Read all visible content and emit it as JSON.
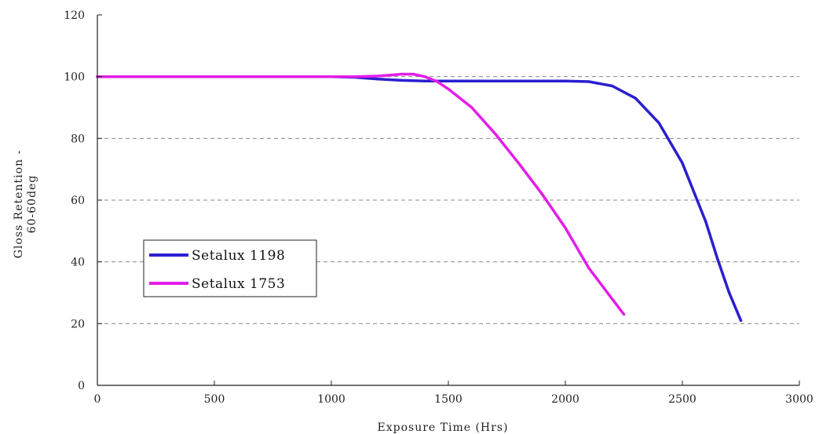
{
  "chart_data": {
    "type": "line",
    "title": "",
    "xlabel": "Exposure Time (Hrs)",
    "ylabel_line1": "Gloss Retention -",
    "ylabel_line2": "60-60deg",
    "xlim": [
      0,
      3000
    ],
    "ylim": [
      0,
      120
    ],
    "x_ticks": [
      0,
      500,
      1000,
      1500,
      2000,
      2500,
      3000
    ],
    "y_ticks": [
      0,
      20,
      40,
      60,
      80,
      100,
      120
    ],
    "grid": "horizontal dashed",
    "legend_position": "lower-left",
    "series": [
      {
        "name": "Setalux 1198",
        "color": "#2a1fd0",
        "x": [
          0,
          200,
          400,
          600,
          800,
          1000,
          1100,
          1200,
          1300,
          1400,
          1600,
          1800,
          2000,
          2100,
          2200,
          2300,
          2400,
          2500,
          2600,
          2650,
          2700,
          2750
        ],
        "y": [
          100,
          100,
          100,
          100,
          100,
          100,
          99.8,
          99.2,
          98.8,
          98.6,
          98.6,
          98.6,
          98.6,
          98.4,
          97,
          93,
          85,
          72,
          53,
          41,
          30,
          21
        ]
      },
      {
        "name": "Setalux 1753",
        "color": "#e31ee8",
        "x": [
          0,
          200,
          400,
          600,
          800,
          1000,
          1100,
          1200,
          1300,
          1350,
          1400,
          1450,
          1500,
          1600,
          1700,
          1800,
          1900,
          2000,
          2100,
          2200,
          2250
        ],
        "y": [
          100,
          100,
          100,
          100,
          100,
          100,
          100,
          100.2,
          100.8,
          100.8,
          100,
          98.5,
          96,
          90,
          81.5,
          72,
          62,
          51,
          38,
          28,
          23
        ]
      }
    ]
  }
}
